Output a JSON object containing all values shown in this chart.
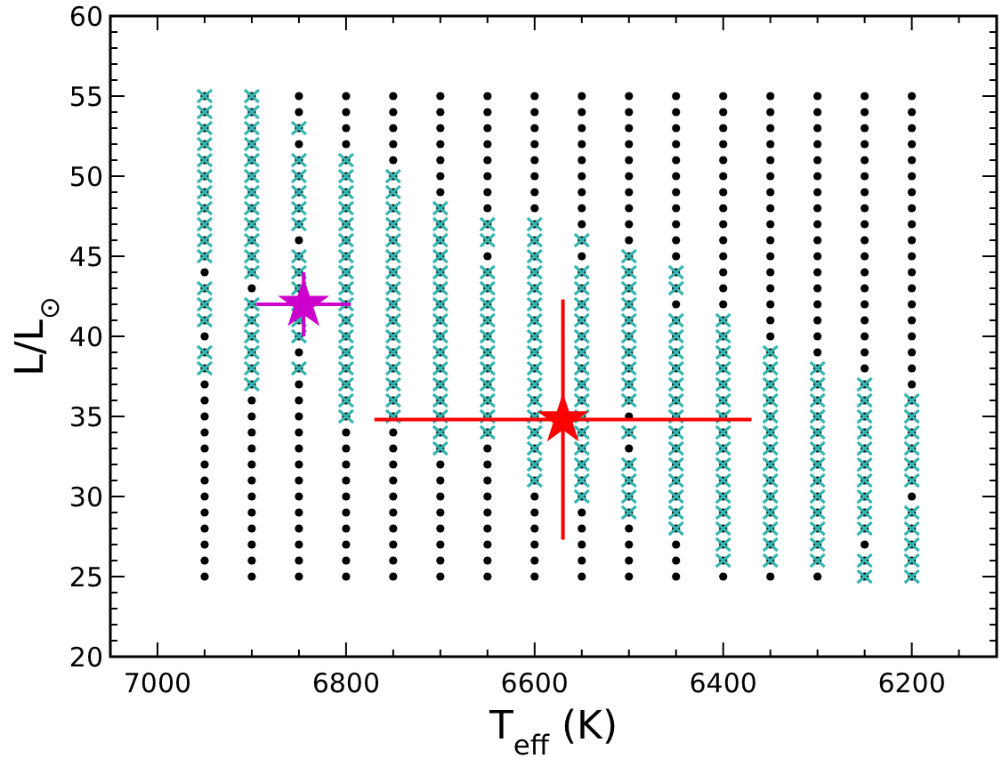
{
  "chart_data": {
    "type": "scatter",
    "xlabel": "T$_{eff}$ (K)",
    "ylabel": "L/L$_{⊙}$",
    "xlim": [
      7050,
      6110
    ],
    "ylim": [
      20,
      60
    ],
    "xticks": [
      {
        "value": 7000,
        "label": "7000"
      },
      {
        "value": 6950,
        "label": null
      },
      {
        "value": 6900,
        "label": null
      },
      {
        "value": 6850,
        "label": null
      },
      {
        "value": 6800,
        "label": "6800"
      },
      {
        "value": 6750,
        "label": null
      },
      {
        "value": 6700,
        "label": null
      },
      {
        "value": 6650,
        "label": null
      },
      {
        "value": 6600,
        "label": "6600"
      },
      {
        "value": 6550,
        "label": null
      },
      {
        "value": 6500,
        "label": null
      },
      {
        "value": 6450,
        "label": null
      },
      {
        "value": 6400,
        "label": "6400"
      },
      {
        "value": 6350,
        "label": null
      },
      {
        "value": 6300,
        "label": null
      },
      {
        "value": 6250,
        "label": null
      },
      {
        "value": 6200,
        "label": "6200"
      },
      {
        "value": 6150,
        "label": null
      }
    ],
    "yticks": [
      20,
      {
        "value": 21,
        "label": null
      },
      {
        "value": 22,
        "label": null
      },
      {
        "value": 23,
        "label": null
      },
      {
        "value": 24,
        "label": null
      },
      25,
      {
        "value": 26,
        "label": null
      },
      {
        "value": 27,
        "label": null
      },
      {
        "value": 28,
        "label": null
      },
      {
        "value": 29,
        "label": null
      },
      30,
      {
        "value": 31,
        "label": null
      },
      {
        "value": 32,
        "label": null
      },
      {
        "value": 33,
        "label": null
      },
      {
        "value": 34,
        "label": null
      },
      35,
      {
        "value": 36,
        "label": null
      },
      {
        "value": 37,
        "label": null
      },
      {
        "value": 38,
        "label": null
      },
      {
        "value": 39,
        "label": null
      },
      40,
      {
        "value": 41,
        "label": null
      },
      {
        "value": 42,
        "label": null
      },
      {
        "value": 43,
        "label": null
      },
      {
        "value": 44,
        "label": null
      },
      45,
      {
        "value": 46,
        "label": null
      },
      {
        "value": 47,
        "label": null
      },
      {
        "value": 48,
        "label": null
      },
      {
        "value": 49,
        "label": null
      },
      50,
      {
        "value": 51,
        "label": null
      },
      {
        "value": 52,
        "label": null
      },
      {
        "value": 53,
        "label": null
      },
      {
        "value": 54,
        "label": null
      },
      55,
      {
        "value": 56,
        "label": null
      },
      {
        "value": 57,
        "label": null
      },
      {
        "value": 58,
        "label": null
      },
      {
        "value": 59,
        "label": null
      },
      60
    ],
    "grid": false,
    "series": [
      {
        "color": "#000000",
        "marker": "circle",
        "x": [
          6950,
          6950,
          6950,
          6950,
          6950,
          6950,
          6950,
          6950,
          6950,
          6950,
          6950,
          6950,
          6950,
          6950,
          6950,
          6950,
          6950,
          6950,
          6950,
          6950,
          6950,
          6950,
          6950,
          6950,
          6950,
          6950,
          6950,
          6950,
          6950,
          6950,
          6950,
          6900,
          6900,
          6900,
          6900,
          6900,
          6900,
          6900,
          6900,
          6900,
          6900,
          6900,
          6900,
          6900,
          6900,
          6900,
          6900,
          6900,
          6900,
          6900,
          6900,
          6900,
          6900,
          6900,
          6900,
          6900,
          6900,
          6900,
          6900,
          6900,
          6900,
          6900,
          6850,
          6850,
          6850,
          6850,
          6850,
          6850,
          6850,
          6850,
          6850,
          6850,
          6850,
          6850,
          6850,
          6850,
          6850,
          6850,
          6850,
          6850,
          6850,
          6850,
          6850,
          6850,
          6850,
          6850,
          6850,
          6850,
          6850,
          6850,
          6850,
          6850,
          6800,
          6800,
          6800,
          6800,
          6800,
          6800,
          6800,
          6800,
          6800,
          6800,
          6800,
          6800,
          6800,
          6800,
          6800,
          6800,
          6800,
          6800,
          6800,
          6800,
          6800,
          6800,
          6800,
          6800,
          6800,
          6800,
          6800,
          6800,
          6800,
          6800,
          6800,
          6750,
          6750,
          6750,
          6750,
          6750,
          6750,
          6750,
          6750,
          6750,
          6750,
          6750,
          6750,
          6750,
          6750,
          6750,
          6750,
          6750,
          6750,
          6750,
          6750,
          6750,
          6750,
          6750,
          6750,
          6750,
          6750,
          6750,
          6750,
          6750,
          6750,
          6750,
          6700,
          6700,
          6700,
          6700,
          6700,
          6700,
          6700,
          6700,
          6700,
          6700,
          6700,
          6700,
          6700,
          6700,
          6700,
          6700,
          6700,
          6700,
          6700,
          6700,
          6700,
          6700,
          6700,
          6700,
          6700,
          6700,
          6700,
          6700,
          6700,
          6700,
          6700,
          6650,
          6650,
          6650,
          6650,
          6650,
          6650,
          6650,
          6650,
          6650,
          6650,
          6650,
          6650,
          6650,
          6650,
          6650,
          6650,
          6650,
          6650,
          6650,
          6650,
          6650,
          6650,
          6650,
          6650,
          6650,
          6650,
          6650,
          6650,
          6650,
          6650,
          6650,
          6600,
          6600,
          6600,
          6600,
          6600,
          6600,
          6600,
          6600,
          6600,
          6600,
          6600,
          6600,
          6600,
          6600,
          6600,
          6600,
          6600,
          6600,
          6600,
          6600,
          6600,
          6600,
          6600,
          6600,
          6600,
          6600,
          6600,
          6600,
          6600,
          6600,
          6600,
          6550,
          6550,
          6550,
          6550,
          6550,
          6550,
          6550,
          6550,
          6550,
          6550,
          6550,
          6550,
          6550,
          6550,
          6550,
          6550,
          6550,
          6550,
          6550,
          6550,
          6550,
          6550,
          6550,
          6550,
          6550,
          6550,
          6550,
          6550,
          6550,
          6550,
          6550,
          6500,
          6500,
          6500,
          6500,
          6500,
          6500,
          6500,
          6500,
          6500,
          6500,
          6500,
          6500,
          6500,
          6500,
          6500,
          6500,
          6500,
          6500,
          6500,
          6500,
          6500,
          6500,
          6500,
          6500,
          6500,
          6500,
          6500,
          6500,
          6500,
          6500,
          6500,
          6450,
          6450,
          6450,
          6450,
          6450,
          6450,
          6450,
          6450,
          6450,
          6450,
          6450,
          6450,
          6450,
          6450,
          6450,
          6450,
          6450,
          6450,
          6450,
          6450,
          6450,
          6450,
          6450,
          6450,
          6450,
          6450,
          6450,
          6450,
          6450,
          6450,
          6450,
          6400,
          6400,
          6400,
          6400,
          6400,
          6400,
          6400,
          6400,
          6400,
          6400,
          6400,
          6400,
          6400,
          6400,
          6400,
          6400,
          6400,
          6400,
          6400,
          6400,
          6400,
          6400,
          6400,
          6400,
          6400,
          6400,
          6400,
          6400,
          6400,
          6400,
          6400,
          6350,
          6350,
          6350,
          6350,
          6350,
          6350,
          6350,
          6350,
          6350,
          6350,
          6350,
          6350,
          6350,
          6350,
          6350,
          6350,
          6350,
          6350,
          6350,
          6350,
          6350,
          6350,
          6350,
          6350,
          6350,
          6350,
          6350,
          6350,
          6350,
          6350,
          6350,
          6300,
          6300,
          6300,
          6300,
          6300,
          6300,
          6300,
          6300,
          6300,
          6300,
          6300,
          6300,
          6300,
          6300,
          6300,
          6300,
          6300,
          6300,
          6300,
          6300,
          6300,
          6300,
          6300,
          6300,
          6300,
          6300,
          6300,
          6300,
          6300,
          6300,
          6300,
          6250,
          6250,
          6250,
          6250,
          6250,
          6250,
          6250,
          6250,
          6250,
          6250,
          6250,
          6250,
          6250,
          6250,
          6250,
          6250,
          6250,
          6250,
          6250,
          6250,
          6250,
          6250,
          6250,
          6250,
          6250,
          6250,
          6250,
          6250,
          6250,
          6250,
          6250,
          6200,
          6200,
          6200,
          6200,
          6200,
          6200,
          6200,
          6200,
          6200,
          6200,
          6200,
          6200,
          6200,
          6200,
          6200,
          6200,
          6200,
          6200,
          6200,
          6200,
          6200,
          6200,
          6200,
          6200,
          6200,
          6200,
          6200,
          6200,
          6200,
          6200,
          6200
        ],
        "values": [
          55,
          54,
          53,
          52,
          51,
          50,
          49,
          48,
          47,
          46,
          45,
          44,
          43,
          42,
          41,
          40,
          39,
          38,
          37,
          36,
          35,
          34,
          33,
          32,
          31,
          30,
          29,
          28,
          27,
          26,
          25,
          55,
          54,
          53,
          52,
          51,
          50,
          49,
          48,
          47,
          46,
          45,
          44,
          43,
          42,
          41,
          40,
          39,
          38,
          37,
          36,
          35,
          34,
          33,
          32,
          31,
          30,
          29,
          28,
          27,
          26,
          25,
          55,
          54,
          53,
          52,
          51,
          50,
          49,
          48,
          47,
          46,
          45,
          44,
          43,
          41,
          40,
          39,
          38,
          37,
          36,
          35,
          34,
          33,
          32,
          31,
          30,
          29,
          28,
          27,
          26,
          25,
          55,
          54,
          53,
          52,
          51,
          50,
          49,
          48,
          47,
          46,
          45,
          44,
          43,
          42,
          41,
          40,
          39,
          38,
          37,
          36,
          35,
          34,
          33,
          32,
          31,
          30,
          29,
          28,
          27,
          26,
          25,
          55,
          54,
          53,
          52,
          51,
          50,
          49,
          48,
          47,
          46,
          45,
          44,
          43,
          42,
          41,
          40,
          39,
          38,
          37,
          36,
          35,
          34,
          33,
          32,
          31,
          30,
          29,
          28,
          27,
          26,
          25,
          55,
          54,
          53,
          52,
          51,
          50,
          49,
          48,
          47,
          46,
          45,
          44,
          43,
          42,
          41,
          40,
          39,
          38,
          37,
          36,
          35,
          34,
          33,
          32,
          31,
          30,
          29,
          28,
          27,
          26,
          25,
          55,
          54,
          53,
          52,
          51,
          50,
          49,
          48,
          47,
          46,
          45,
          44,
          43,
          42,
          41,
          40,
          39,
          38,
          37,
          36,
          35,
          34,
          33,
          32,
          31,
          30,
          29,
          28,
          27,
          26,
          25,
          55,
          54,
          53,
          52,
          51,
          50,
          49,
          48,
          47,
          46,
          45,
          44,
          43,
          42,
          41,
          40,
          39,
          38,
          37,
          36,
          35,
          34,
          33,
          32,
          31,
          30,
          29,
          28,
          27,
          26,
          25,
          55,
          54,
          53,
          52,
          51,
          50,
          49,
          48,
          47,
          46,
          45,
          44,
          43,
          42,
          41,
          40,
          39,
          38,
          37,
          36,
          35,
          34,
          33,
          32,
          31,
          30,
          29,
          28,
          27,
          26,
          25,
          55,
          54,
          53,
          52,
          51,
          50,
          49,
          48,
          47,
          46,
          45,
          44,
          43,
          42,
          41,
          40,
          39,
          38,
          37,
          36,
          35,
          34,
          33,
          32,
          31,
          30,
          29,
          28,
          27,
          26,
          25,
          55,
          54,
          53,
          52,
          51,
          50,
          49,
          48,
          47,
          46,
          45,
          44,
          43,
          42,
          41,
          40,
          39,
          38,
          37,
          36,
          35,
          34,
          33,
          32,
          31,
          30,
          29,
          28,
          27,
          26,
          25,
          55,
          54,
          53,
          52,
          51,
          50,
          49,
          48,
          47,
          46,
          45,
          44,
          43,
          42,
          41,
          40,
          39,
          38,
          37,
          36,
          35,
          34,
          33,
          32,
          31,
          30,
          29,
          28,
          27,
          26,
          25,
          55,
          54,
          53,
          52,
          51,
          50,
          49,
          48,
          47,
          46,
          45,
          44,
          43,
          42,
          41,
          40,
          39,
          38,
          37,
          36,
          35,
          34,
          33,
          32,
          31,
          30,
          29,
          28,
          27,
          26,
          25,
          55,
          54,
          53,
          52,
          51,
          50,
          49,
          48,
          47,
          46,
          45,
          44,
          43,
          42,
          41,
          40,
          39,
          38,
          37,
          36,
          35,
          34,
          33,
          32,
          31,
          30,
          29,
          28,
          27,
          26,
          25,
          55,
          54,
          53,
          52,
          51,
          50,
          49,
          48,
          47,
          46,
          45,
          44,
          43,
          42,
          41,
          40,
          39,
          38,
          37,
          36,
          35,
          34,
          33,
          32,
          31,
          30,
          29,
          28,
          27,
          26,
          25,
          55,
          54,
          53,
          52,
          51,
          50,
          49,
          48,
          47,
          46,
          45,
          44,
          43,
          42,
          41,
          40,
          39,
          38,
          37,
          36,
          35,
          34,
          33,
          32,
          31,
          30,
          29,
          28,
          27,
          26,
          25
        ]
      },
      {
        "color": "#35b5b0",
        "marker": "cross",
        "x": [
          6950,
          6950,
          6950,
          6950,
          6950,
          6950,
          6950,
          6950,
          6950,
          6950,
          6950,
          6950,
          6950,
          6950,
          6950,
          6950,
          6900,
          6900,
          6900,
          6900,
          6900,
          6900,
          6900,
          6900,
          6900,
          6900,
          6900,
          6900,
          6900,
          6900,
          6900,
          6900,
          6900,
          6900,
          6850,
          6850,
          6850,
          6850,
          6850,
          6850,
          6850,
          6850,
          6850,
          6850,
          6850,
          6850,
          6850,
          6800,
          6800,
          6800,
          6800,
          6800,
          6800,
          6800,
          6800,
          6800,
          6800,
          6800,
          6800,
          6800,
          6800,
          6800,
          6800,
          6800,
          6750,
          6750,
          6750,
          6750,
          6750,
          6750,
          6750,
          6750,
          6750,
          6750,
          6750,
          6750,
          6750,
          6750,
          6750,
          6750,
          6700,
          6700,
          6700,
          6700,
          6700,
          6700,
          6700,
          6700,
          6700,
          6700,
          6700,
          6700,
          6700,
          6700,
          6700,
          6700,
          6650,
          6650,
          6650,
          6650,
          6650,
          6650,
          6650,
          6650,
          6650,
          6650,
          6650,
          6650,
          6650,
          6600,
          6600,
          6600,
          6600,
          6600,
          6600,
          6600,
          6600,
          6600,
          6600,
          6600,
          6600,
          6600,
          6600,
          6600,
          6600,
          6600,
          6550,
          6550,
          6550,
          6550,
          6550,
          6550,
          6550,
          6550,
          6550,
          6550,
          6550,
          6550,
          6550,
          6550,
          6550,
          6550,
          6500,
          6500,
          6500,
          6500,
          6500,
          6500,
          6500,
          6500,
          6500,
          6500,
          6500,
          6500,
          6500,
          6500,
          6500,
          6450,
          6450,
          6450,
          6450,
          6450,
          6450,
          6450,
          6450,
          6450,
          6450,
          6450,
          6450,
          6450,
          6450,
          6450,
          6450,
          6400,
          6400,
          6400,
          6400,
          6400,
          6400,
          6400,
          6400,
          6400,
          6400,
          6400,
          6400,
          6400,
          6400,
          6400,
          6400,
          6350,
          6350,
          6350,
          6350,
          6350,
          6350,
          6350,
          6350,
          6350,
          6350,
          6350,
          6350,
          6350,
          6350,
          6300,
          6300,
          6300,
          6300,
          6300,
          6300,
          6300,
          6300,
          6300,
          6300,
          6300,
          6300,
          6300,
          6250,
          6250,
          6250,
          6250,
          6250,
          6250,
          6250,
          6250,
          6250,
          6250,
          6250,
          6250,
          6200,
          6200,
          6200,
          6200,
          6200,
          6200,
          6200,
          6200,
          6200,
          6200,
          6200
        ],
        "values": [
          55,
          54,
          53,
          52,
          51,
          50,
          49,
          48,
          47,
          46,
          45,
          43,
          42,
          41,
          39,
          38,
          55,
          54,
          53,
          52,
          51,
          50,
          49,
          48,
          47,
          46,
          45,
          44,
          42,
          41,
          40,
          39,
          38,
          37,
          53,
          51,
          50,
          49,
          48,
          47,
          45,
          44,
          43,
          42,
          41,
          40,
          38,
          51,
          50,
          49,
          48,
          47,
          46,
          45,
          44,
          43,
          42,
          41,
          40,
          39,
          38,
          37,
          36,
          35,
          50,
          49,
          48,
          47,
          46,
          45,
          44,
          43,
          42,
          41,
          40,
          39,
          38,
          37,
          36,
          35,
          48,
          47,
          46,
          45,
          44,
          43,
          42,
          41,
          40,
          39,
          38,
          37,
          36,
          35,
          34,
          33,
          47,
          46,
          44,
          43,
          42,
          41,
          40,
          39,
          38,
          37,
          36,
          35,
          34,
          47,
          46,
          45,
          44,
          43,
          42,
          41,
          40,
          39,
          38,
          37,
          36,
          35,
          34,
          33,
          32,
          31,
          46,
          44,
          43,
          42,
          41,
          40,
          39,
          38,
          37,
          36,
          35,
          34,
          33,
          32,
          31,
          30,
          45,
          44,
          43,
          42,
          41,
          40,
          39,
          38,
          37,
          36,
          34,
          32,
          31,
          30,
          29,
          44,
          43,
          41,
          40,
          39,
          38,
          37,
          36,
          35,
          34,
          33,
          32,
          31,
          30,
          29,
          28,
          41,
          40,
          39,
          38,
          37,
          36,
          35,
          34,
          33,
          32,
          31,
          30,
          29,
          28,
          27,
          26,
          39,
          38,
          37,
          36,
          35,
          34,
          33,
          32,
          31,
          30,
          29,
          28,
          27,
          26,
          38,
          37,
          36,
          35,
          34,
          33,
          32,
          31,
          30,
          29,
          28,
          27,
          26,
          37,
          36,
          35,
          34,
          33,
          32,
          31,
          30,
          29,
          28,
          26,
          25,
          36,
          35,
          34,
          33,
          32,
          31,
          29,
          28,
          27,
          26,
          25
        ]
      },
      {
        "color": "#cc00cc",
        "marker": "star",
        "x": [
          6845
        ],
        "values": [
          42
        ],
        "errors": [
          2
        ],
        "xerrors": [
          50
        ]
      },
      {
        "color": "#ff0000",
        "marker": "star",
        "x": [
          6570
        ],
        "values": [
          34.8
        ],
        "errors": [
          7.5
        ],
        "xerrors": [
          200
        ]
      }
    ]
  }
}
